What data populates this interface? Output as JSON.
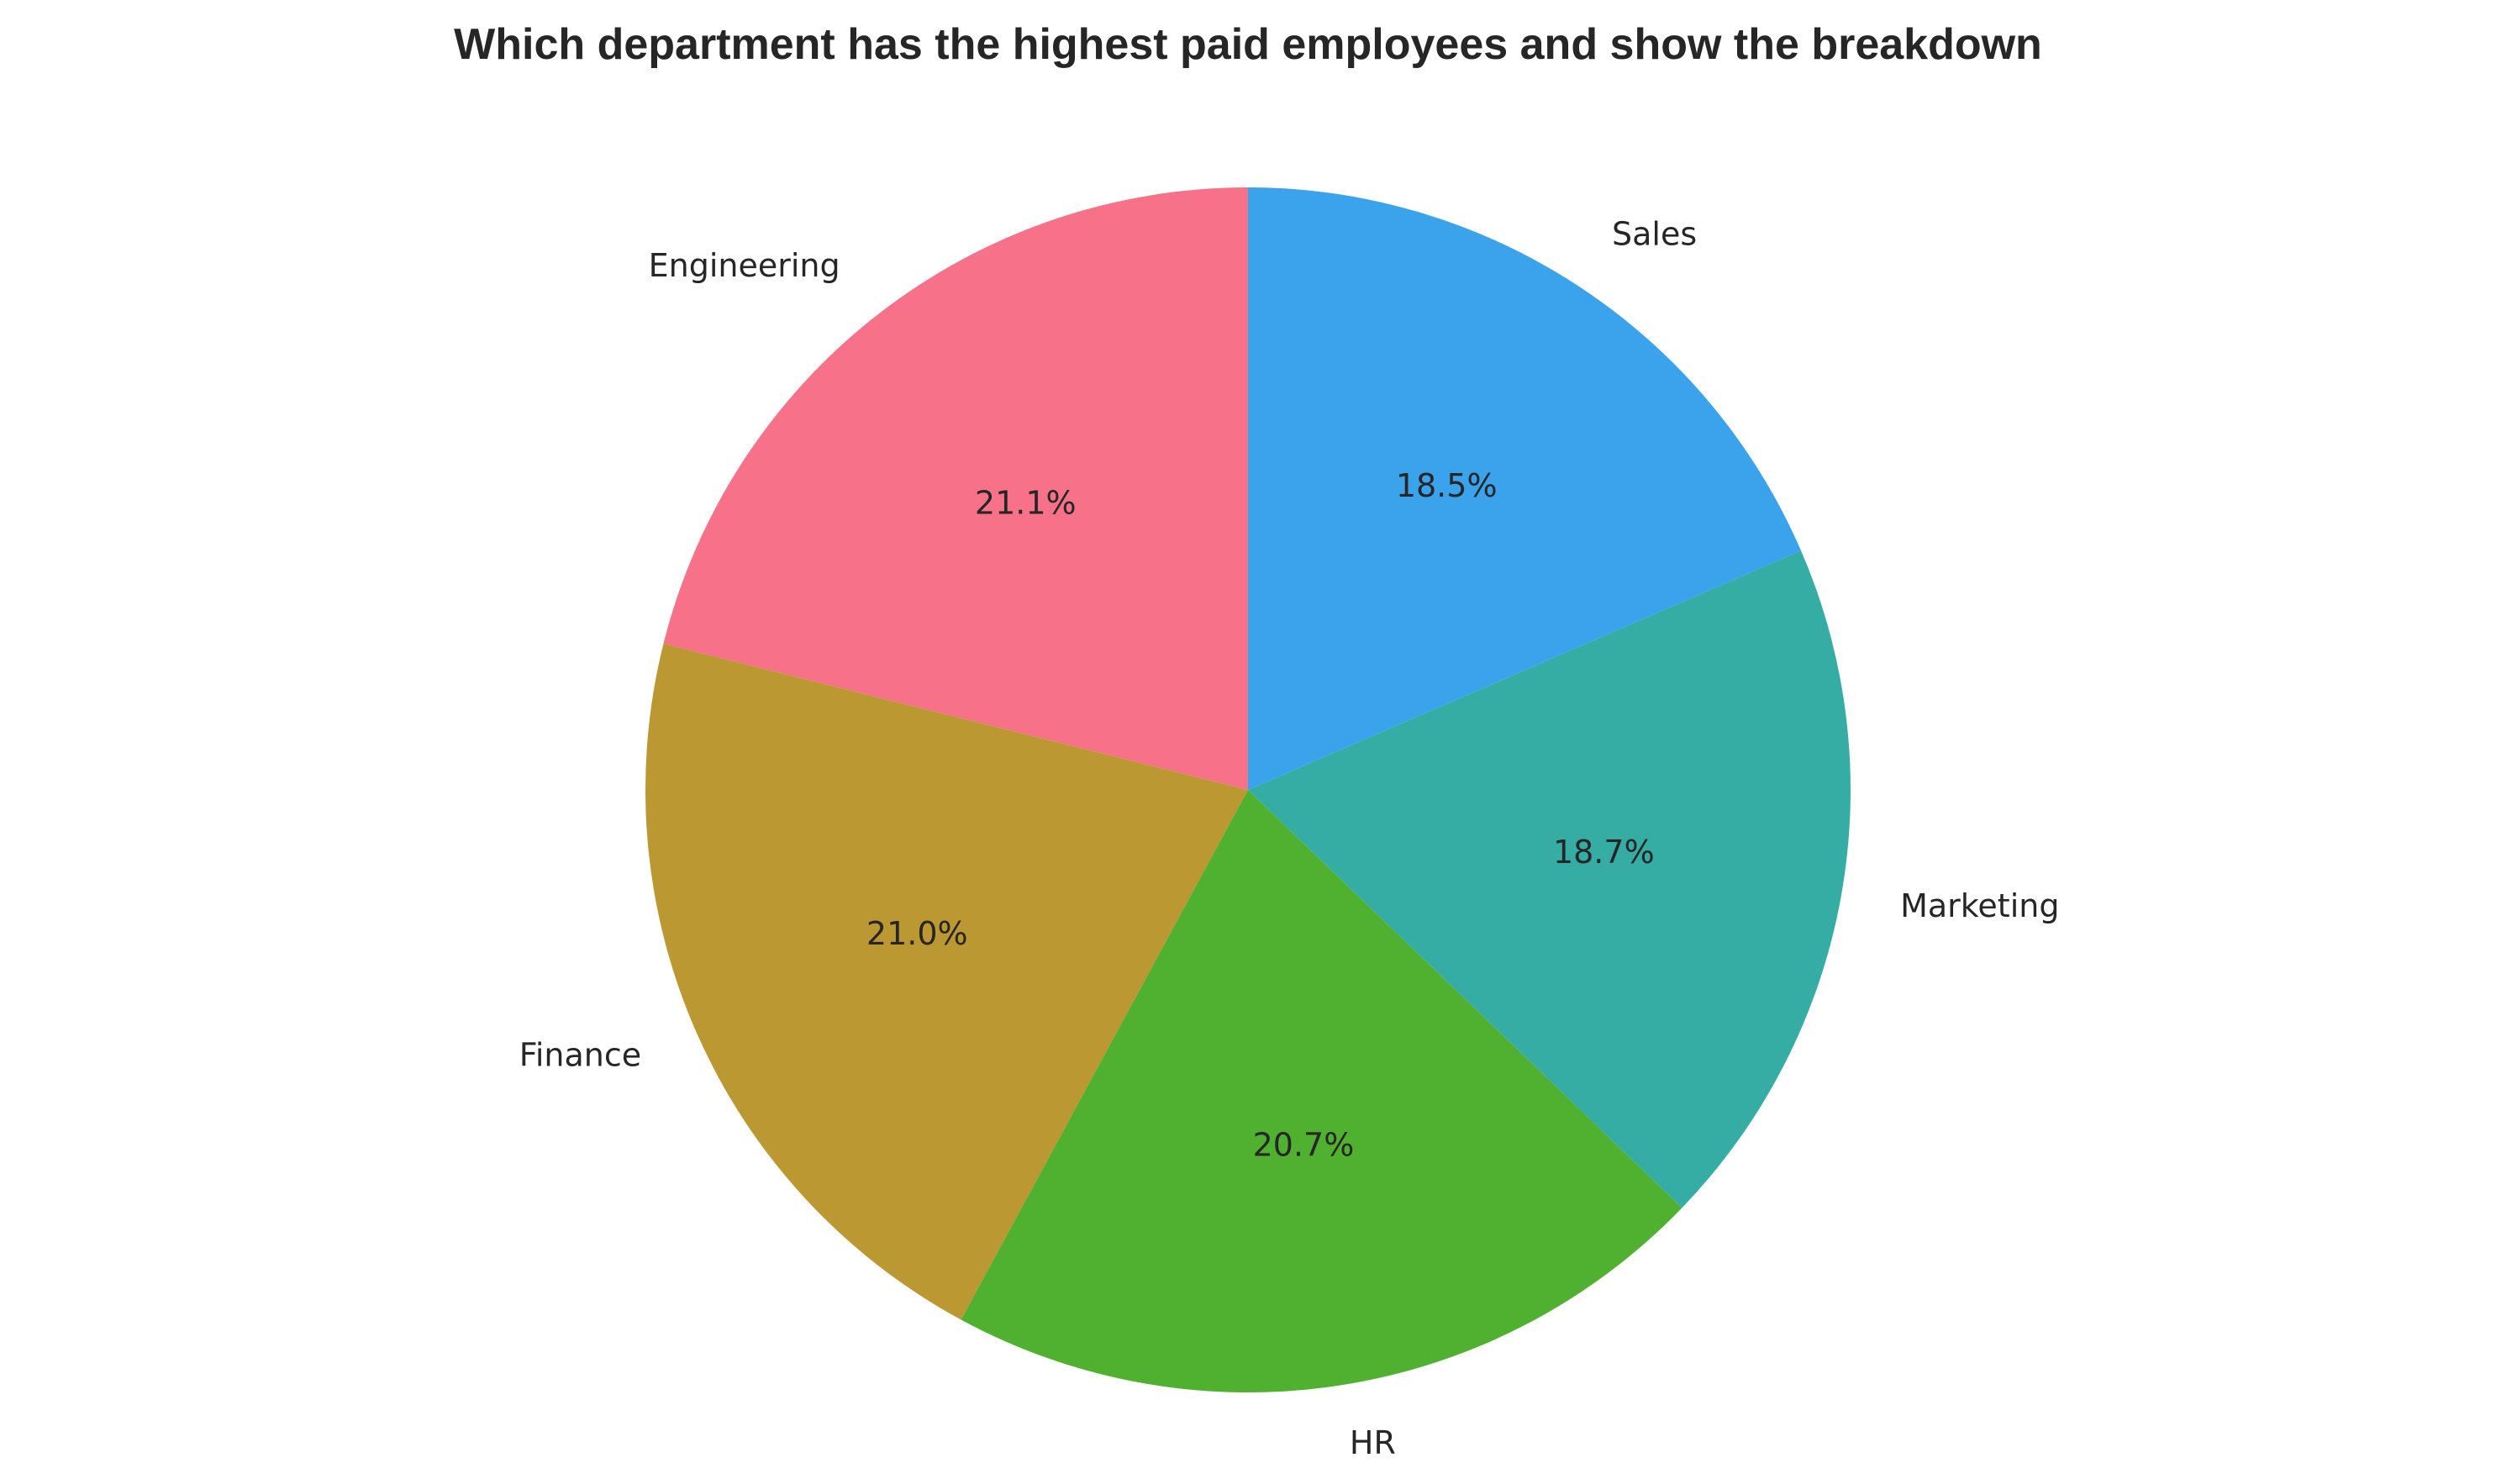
{
  "chart_data": {
    "type": "pie",
    "title": "Which department has the highest paid employees and show the breakdown",
    "categories": [
      "Engineering",
      "Finance",
      "HR",
      "Marketing",
      "Sales"
    ],
    "values": [
      21.1,
      21.0,
      20.7,
      18.7,
      18.5
    ],
    "value_labels": [
      "21.1%",
      "21.0%",
      "20.7%",
      "18.7%",
      "18.5%"
    ],
    "unit": "%",
    "start_angle_deg": 90,
    "direction": "counterclockwise",
    "colors": [
      "#f77189",
      "#bb9832",
      "#50b131",
      "#36ada4",
      "#3ba3ec"
    ],
    "legend": "none"
  }
}
